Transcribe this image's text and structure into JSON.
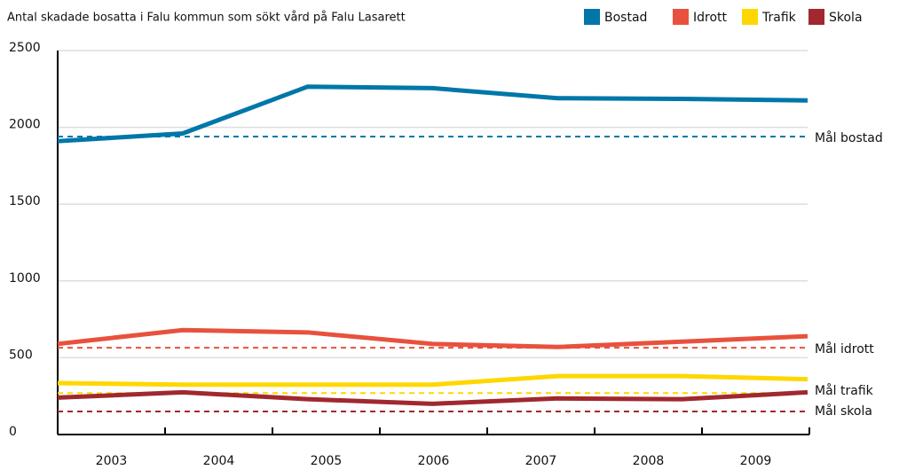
{
  "chart_data": {
    "type": "line",
    "title": "Antal skadade bosatta i Falu kommun som sökt vård på Falu Lasarett",
    "categories": [
      "2003",
      "2004",
      "2005",
      "2006",
      "2007",
      "2008",
      "2009"
    ],
    "series": [
      {
        "name": "Bostad",
        "color": "#0077a8",
        "values": [
          1910,
          1960,
          2265,
          2255,
          2190,
          2185,
          2175
        ]
      },
      {
        "name": "Idrott",
        "color": "#e8513d",
        "values": [
          590,
          680,
          665,
          590,
          570,
          605,
          640
        ]
      },
      {
        "name": "Trafik",
        "color": "#ffd700",
        "values": [
          335,
          325,
          325,
          325,
          380,
          380,
          360
        ]
      },
      {
        "name": "Skola",
        "color": "#a0282e",
        "values": [
          240,
          275,
          230,
          200,
          235,
          230,
          275
        ]
      }
    ],
    "targets": [
      {
        "label": "Mål bostad",
        "value": 1940,
        "color": "#0077a8"
      },
      {
        "label": "Mål idrott",
        "value": 565,
        "color": "#e8513d"
      },
      {
        "label": "Mål trafik",
        "value": 270,
        "color": "#ffd700"
      },
      {
        "label": "Mål skola",
        "value": 150,
        "color": "#a0282e"
      }
    ],
    "ylim": [
      0,
      2500
    ],
    "yticks": [
      0,
      500,
      1000,
      1500,
      2000,
      2500
    ],
    "grid": true,
    "legend": "top-right"
  }
}
